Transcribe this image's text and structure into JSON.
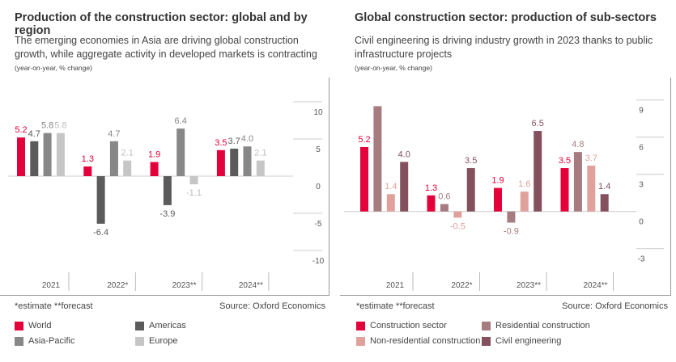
{
  "chart_data": [
    {
      "type": "bar",
      "title": "Production of the construction sector: global and by region",
      "subtitle": "The emerging economies in Asia are driving global construction growth, while aggregate activity in developed markets is contracting",
      "unit_note": "(year-on-year, % change)",
      "categories": [
        "2021",
        "2022*",
        "2023**",
        "2024**"
      ],
      "series": [
        {
          "name": "World",
          "color": "#e4003a",
          "values": [
            5.2,
            1.3,
            1.9,
            3.5
          ],
          "labels": [
            "5.2",
            "1.3",
            "1.9",
            "3.5"
          ]
        },
        {
          "name": "Americas",
          "color": "#5b5b5b",
          "values": [
            4.7,
            -6.4,
            -3.9,
            3.7
          ],
          "labels": [
            "4.7",
            "-6.4",
            "-3.9",
            "3.7"
          ]
        },
        {
          "name": "Asia-Pacific",
          "color": "#878787",
          "values": [
            5.8,
            4.7,
            6.4,
            4.0
          ],
          "labels": [
            "5.8",
            "4.7",
            "6.4",
            "4.0"
          ]
        },
        {
          "name": "Europe",
          "color": "#c6c6c6",
          "values": [
            5.8,
            2.1,
            -1.1,
            2.1
          ],
          "labels": [
            "5.8",
            "2.1",
            "-1.1",
            "2.1"
          ]
        }
      ],
      "yticks": [
        "10",
        "5",
        "0",
        "-5",
        "-10"
      ],
      "ylim": [
        -12,
        11
      ],
      "grid": true,
      "legend": "bottom",
      "footnote": "*estimate  **forecast",
      "source": "Source: Oxford Economics"
    },
    {
      "type": "bar",
      "title": "Global construction sector: production of sub-sectors",
      "subtitle": "Civil engineering is driving industry growth in 2023 thanks to public infrastructure projects",
      "unit_note": "(year-on-year, % change)",
      "categories": [
        "2021",
        "2022*",
        "2023**",
        "2024**"
      ],
      "series": [
        {
          "name": "Construction sector",
          "color": "#e4003a",
          "values": [
            5.2,
            1.3,
            1.9,
            3.5
          ],
          "labels": [
            "5.2",
            "1.3",
            "1.9",
            "3.5"
          ]
        },
        {
          "name": "Residential construction",
          "color": "#a67c80",
          "values": [
            8.5,
            0.6,
            -0.9,
            4.8
          ],
          "labels": [
            "",
            "0.6",
            "-0.9",
            "4.8"
          ]
        },
        {
          "name": "Non-residential construction",
          "color": "#e0a19d",
          "values": [
            1.4,
            -0.5,
            1.6,
            3.7
          ],
          "labels": [
            "1.4",
            "-0.5",
            "1.6",
            "3.7"
          ]
        },
        {
          "name": "Civil engineering",
          "color": "#84505d",
          "values": [
            4.0,
            3.5,
            6.5,
            1.4
          ],
          "labels": [
            "4.0",
            "3.5",
            "6.5",
            "1.4"
          ]
        }
      ],
      "yticks": [
        "9",
        "6",
        "3",
        "0",
        "-3"
      ],
      "ylim": [
        -4,
        10
      ],
      "grid": true,
      "legend": "bottom",
      "footnote": "*estimate  **forecast",
      "source": "Source: Oxford Economics"
    }
  ]
}
